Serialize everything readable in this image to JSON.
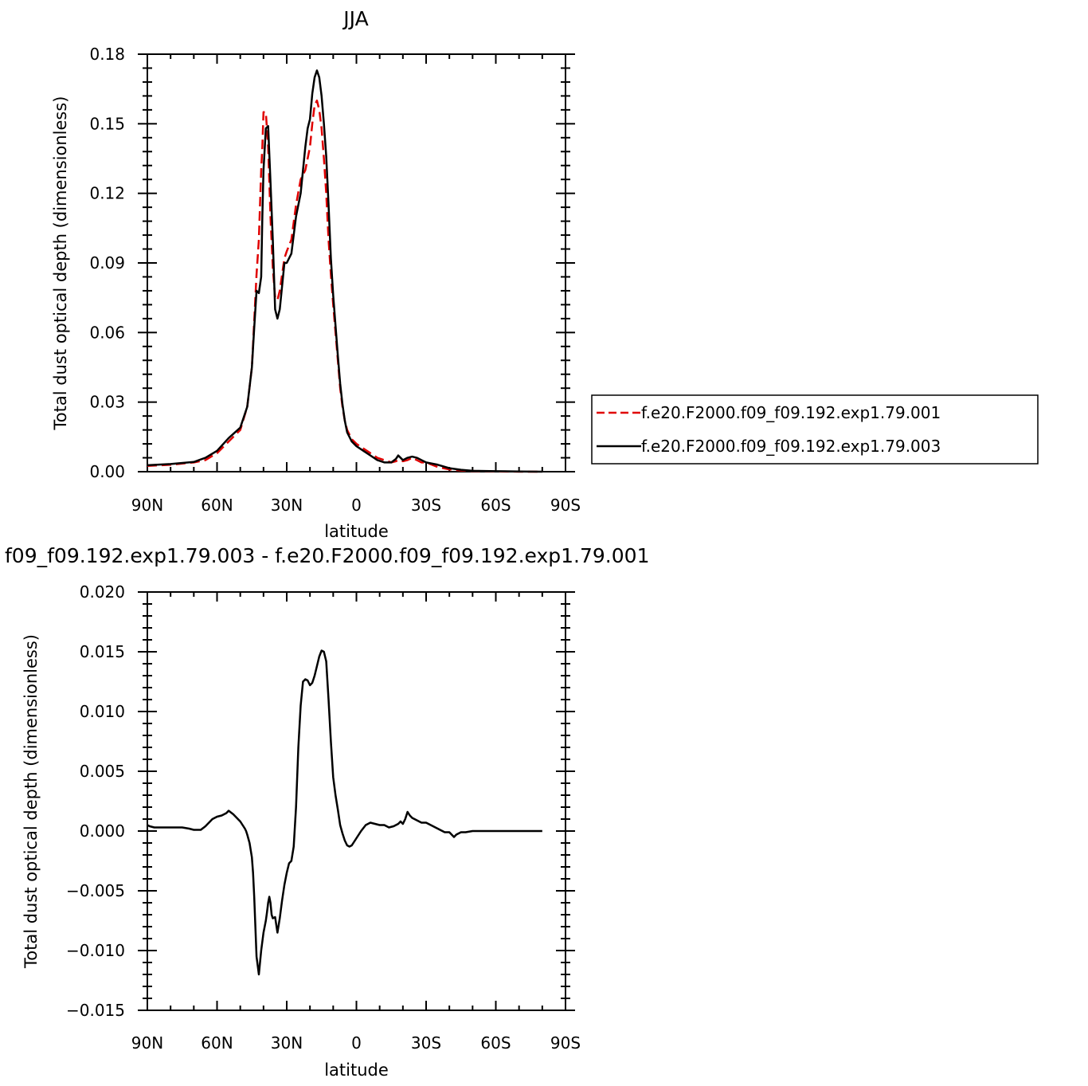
{
  "chart_data": [
    {
      "type": "line",
      "title": "JJA",
      "xlabel": "latitude",
      "ylabel": "Total dust optical depth (dimensionless)",
      "xlim": [
        90,
        -90
      ],
      "ylim": [
        0,
        0.18
      ],
      "x_ticks": [
        90,
        60,
        30,
        0,
        -30,
        -60,
        -90
      ],
      "x_tick_labels": [
        "90N",
        "60N",
        "30N",
        "0",
        "30S",
        "60S",
        "90S"
      ],
      "y_ticks": [
        0,
        0.03,
        0.06,
        0.09,
        0.12,
        0.15,
        0.18
      ],
      "y_tick_labels": [
        "0.00",
        "0.03",
        "0.06",
        "0.09",
        "0.12",
        "0.15",
        "0.18"
      ],
      "legend_position": "outside-right",
      "series": [
        {
          "name": "f.e20.F2000.f09_f09.192.exp1.79.001",
          "color": "#e00000",
          "dash": "dashed",
          "x": [
            90,
            80,
            70,
            65,
            60,
            55,
            50,
            47,
            45,
            44,
            43,
            42,
            41,
            40.5,
            40,
            39,
            38,
            37,
            36,
            35,
            34,
            33,
            32,
            31,
            30,
            28,
            26,
            24,
            22,
            21,
            20,
            19,
            18,
            17,
            16,
            15,
            14,
            13,
            12,
            11,
            10,
            9,
            8,
            7,
            6,
            5,
            4,
            2,
            0,
            -3,
            -6,
            -9,
            -12,
            -15,
            -17,
            -18,
            -20,
            -22,
            -24,
            -26,
            -28,
            -30,
            -35,
            -40,
            -45,
            -50,
            -60,
            -70,
            -80
          ],
          "y": [
            0.0025,
            0.003,
            0.004,
            0.005,
            0.008,
            0.013,
            0.018,
            0.028,
            0.045,
            0.065,
            0.085,
            0.1,
            0.13,
            0.14,
            0.155,
            0.155,
            0.14,
            0.11,
            0.088,
            0.075,
            0.074,
            0.078,
            0.085,
            0.092,
            0.095,
            0.1,
            0.115,
            0.126,
            0.13,
            0.135,
            0.14,
            0.15,
            0.158,
            0.16,
            0.156,
            0.148,
            0.135,
            0.12,
            0.1,
            0.085,
            0.072,
            0.06,
            0.048,
            0.036,
            0.028,
            0.022,
            0.018,
            0.014,
            0.012,
            0.01,
            0.008,
            0.006,
            0.005,
            0.004,
            0.0045,
            0.005,
            0.0045,
            0.005,
            0.006,
            0.005,
            0.004,
            0.004,
            0.002,
            0.001,
            0.0005,
            0.0003,
            0.0001,
            0,
            0
          ]
        },
        {
          "name": "f.e20.F2000.f09_f09.192.exp1.79.003",
          "color": "#000000",
          "dash": "solid",
          "x": [
            90,
            80,
            70,
            65,
            60,
            55,
            50,
            47,
            45,
            44,
            43,
            42,
            41,
            40.5,
            40,
            39,
            38,
            37,
            36,
            35,
            34,
            33,
            32,
            31,
            30,
            28,
            26,
            24,
            22,
            21,
            20,
            19,
            18,
            17,
            16,
            15,
            14,
            13,
            12,
            11,
            10,
            9,
            8,
            7,
            6,
            5,
            4,
            2,
            0,
            -3,
            -6,
            -9,
            -12,
            -15,
            -17,
            -18,
            -20,
            -22,
            -24,
            -26,
            -28,
            -30,
            -35,
            -40,
            -45,
            -50,
            -60,
            -70,
            -80
          ],
          "y": [
            0.0028,
            0.0033,
            0.0042,
            0.006,
            0.009,
            0.0145,
            0.019,
            0.028,
            0.045,
            0.062,
            0.078,
            0.077,
            0.084,
            0.11,
            0.13,
            0.148,
            0.149,
            0.125,
            0.1,
            0.07,
            0.066,
            0.07,
            0.08,
            0.09,
            0.09,
            0.094,
            0.11,
            0.12,
            0.14,
            0.148,
            0.152,
            0.163,
            0.17,
            0.173,
            0.17,
            0.162,
            0.15,
            0.136,
            0.115,
            0.092,
            0.076,
            0.063,
            0.05,
            0.038,
            0.029,
            0.022,
            0.017,
            0.013,
            0.011,
            0.009,
            0.007,
            0.005,
            0.004,
            0.004,
            0.0055,
            0.007,
            0.005,
            0.006,
            0.0065,
            0.006,
            0.005,
            0.004,
            0.003,
            0.0015,
            0.0008,
            0.0004,
            0.0002,
            0.0001,
            0
          ]
        }
      ]
    },
    {
      "type": "line",
      "title": "f09_f09.192.exp1.79.003 - f.e20.F2000.f09_f09.192.exp1.79.001",
      "xlabel": "latitude",
      "ylabel": "Total dust optical depth (dimensionless)",
      "xlim": [
        90,
        -90
      ],
      "ylim": [
        -0.015,
        0.02
      ],
      "x_ticks": [
        90,
        60,
        30,
        0,
        -30,
        -60,
        -90
      ],
      "x_tick_labels": [
        "90N",
        "60N",
        "30N",
        "0",
        "30S",
        "60S",
        "90S"
      ],
      "y_ticks": [
        -0.015,
        -0.01,
        -0.005,
        0,
        0.005,
        0.01,
        0.015,
        0.02
      ],
      "y_tick_labels": [
        "−0.015",
        "−0.010",
        "−0.005",
        "0.000",
        "0.005",
        "0.010",
        "0.015",
        "0.020"
      ],
      "series": [
        {
          "color": "#000000",
          "dash": "solid",
          "x": [
            90,
            89,
            87,
            85,
            82,
            80,
            75,
            72,
            70,
            67,
            65,
            62,
            60,
            58,
            56,
            55,
            53,
            52,
            50,
            49,
            48,
            47.5,
            47,
            46,
            45,
            44.5,
            44,
            43.5,
            43,
            42,
            41,
            40,
            39,
            38.5,
            38,
            37.5,
            37,
            36.5,
            36,
            35,
            34,
            33,
            32,
            31,
            30,
            29,
            28,
            27,
            26,
            25,
            24,
            23,
            22,
            21,
            20,
            19,
            18,
            17,
            16,
            15,
            14,
            13,
            12,
            11,
            10,
            9,
            8,
            7,
            6,
            5,
            4,
            3,
            2,
            0,
            -2,
            -4,
            -6,
            -8,
            -10,
            -12,
            -14,
            -16,
            -18,
            -19,
            -20,
            -21,
            -22,
            -23,
            -24,
            -26,
            -28,
            -30,
            -32,
            -34,
            -36,
            -38,
            -39,
            -40,
            -41,
            -42,
            -43,
            -44,
            -45,
            -46,
            -47,
            -50,
            -55,
            -60,
            -65,
            -70,
            -75,
            -80
          ],
          "y": [
            0.0005,
            0.0004,
            0.0003,
            0.0003,
            0.0003,
            0.0003,
            0.0003,
            0.0002,
            0.0001,
            0.0001,
            0.0004,
            0.001,
            0.0012,
            0.0013,
            0.0015,
            0.0017,
            0.0014,
            0.0012,
            0.0008,
            0.0005,
            0.0002,
            0.0,
            -0.0003,
            -0.001,
            -0.0022,
            -0.0035,
            -0.0055,
            -0.008,
            -0.0105,
            -0.012,
            -0.01,
            -0.0085,
            -0.0075,
            -0.0068,
            -0.006,
            -0.0055,
            -0.006,
            -0.007,
            -0.0073,
            -0.0072,
            -0.0085,
            -0.0073,
            -0.0058,
            -0.0045,
            -0.0035,
            -0.0027,
            -0.0025,
            -0.0013,
            0.002,
            0.007,
            0.0105,
            0.0125,
            0.0127,
            0.0126,
            0.0122,
            0.0124,
            0.013,
            0.0138,
            0.0146,
            0.0151,
            0.015,
            0.0142,
            0.011,
            0.0075,
            0.0045,
            0.003,
            0.0018,
            0.0005,
            -0.0002,
            -0.0008,
            -0.0012,
            -0.0013,
            -0.0012,
            -0.0006,
            0.0,
            0.0005,
            0.0007,
            0.0006,
            0.0005,
            0.0005,
            0.0003,
            0.0004,
            0.0006,
            0.0008,
            0.0006,
            0.001,
            0.0016,
            0.0013,
            0.0011,
            0.0009,
            0.0007,
            0.0007,
            0.0005,
            0.0003,
            0.0001,
            -0.0001,
            -0.0001,
            -0.0001,
            -0.0003,
            -0.0005,
            -0.0003,
            -0.0002,
            -0.0001,
            -0.0001,
            -0.0001,
            0.0,
            0.0,
            0.0,
            0.0,
            0.0,
            0.0,
            0.0
          ]
        }
      ]
    }
  ]
}
